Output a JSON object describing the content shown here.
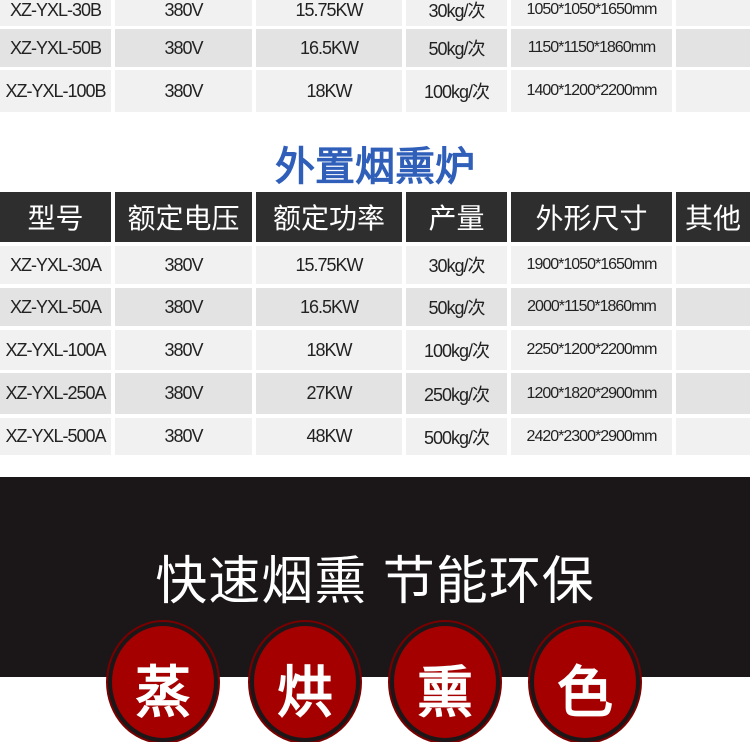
{
  "table_top": {
    "rows": [
      [
        "XZ-YXL-30B",
        "380V",
        "15.75KW",
        "30kg/次",
        "1050*1050*1650mm",
        ""
      ],
      [
        "XZ-YXL-50B",
        "380V",
        "16.5KW",
        "50kg/次",
        "1150*1150*1860mm",
        ""
      ],
      [
        "XZ-YXL-100B",
        "380V",
        "18KW",
        "100kg/次",
        "1400*1200*2200mm",
        ""
      ]
    ]
  },
  "section_title": "外置烟熏炉",
  "table_main": {
    "headers": [
      "型号",
      "额定电压",
      "额定功率",
      "产量",
      "外形尺寸",
      "其他"
    ],
    "rows": [
      [
        "XZ-YXL-30A",
        "380V",
        "15.75KW",
        "30kg/次",
        "1900*1050*1650mm",
        ""
      ],
      [
        "XZ-YXL-50A",
        "380V",
        "16.5KW",
        "50kg/次",
        "2000*1150*1860mm",
        ""
      ],
      [
        "XZ-YXL-100A",
        "380V",
        "18KW",
        "100kg/次",
        "2250*1200*2200mm",
        ""
      ],
      [
        "XZ-YXL-250A",
        "380V",
        "27KW",
        "250kg/次",
        "1200*1820*2900mm",
        ""
      ],
      [
        "XZ-YXL-500A",
        "380V",
        "48KW",
        "500kg/次",
        "2420*2300*2900mm",
        ""
      ]
    ]
  },
  "banner": {
    "slogan": "快速烟熏 节能环保",
    "badges": [
      "蒸",
      "烘",
      "熏",
      "色"
    ],
    "colors": {
      "background": "#1b1719",
      "badge": "#a40000"
    }
  }
}
